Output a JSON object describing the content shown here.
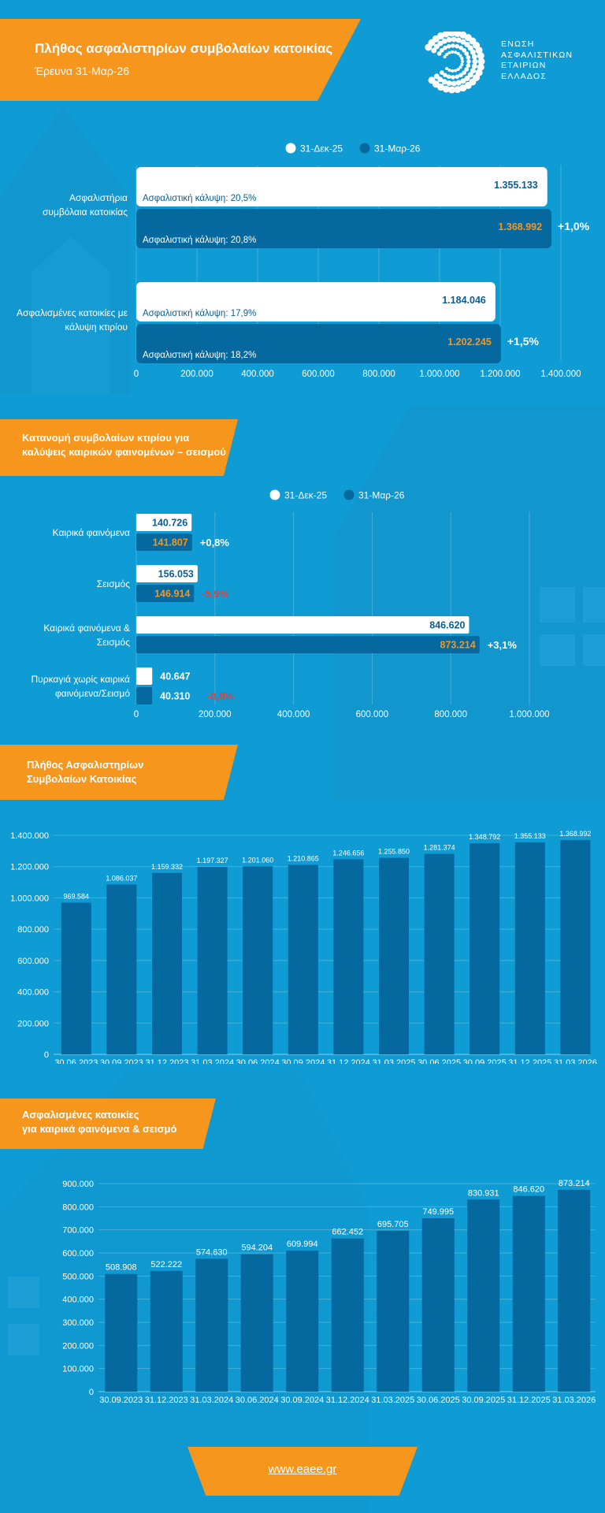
{
  "header": {
    "title": "Πλήθος ασφαλιστηρίων συμβολαίων κατοικίας",
    "subtitle": "Έρευνα 31-Μαρ-26"
  },
  "logo": {
    "lines": [
      "ΕΝΩΣΗ",
      "ΑΣΦΑΛΙΣΤΙΚΩΝ",
      "ΕΤΑΙΡΙΩΝ",
      "ΕΛΛΑΔΟΣ"
    ]
  },
  "colors": {
    "background": "#0f9bd4",
    "accent": "#f7961d",
    "series_prev": "#ffffff",
    "series_curr": "#05689f",
    "negative": "#e2403a",
    "value_highlight": "#f7961d",
    "value_dark": "#0b5e93"
  },
  "section_titles": {
    "s2": [
      "Κατανομή συμβολαίων κτιρίου για",
      "καλύψεις καιρικών φαινομένων – σεισμού"
    ],
    "s3": [
      "Πλήθος Ασφαλιστηρίων",
      "Συμβολαίων Κατοικίας"
    ],
    "s4": [
      "Ασφαλισμένες κατοικίες",
      "για καιρικά φαινόμενα & σεισμό"
    ]
  },
  "footer": {
    "link": "www.eaee.gr"
  },
  "chart_data": [
    {
      "type": "bar",
      "orientation": "horizontal",
      "legend": [
        "31-Δεκ-25",
        "31-Μαρ-26"
      ],
      "legend_position": "top",
      "categories": [
        [
          "Ασφαλιστήρια",
          "συμβόλαια κατοικίας"
        ],
        [
          "Ασφαλισμένες κατοικίες με",
          "κάλυψη κτιρίου"
        ]
      ],
      "series": [
        {
          "name": "31-Δεκ-25",
          "values": [
            1355133,
            1184046
          ],
          "value_labels": [
            "1.355.133",
            "1.184.046"
          ],
          "notes": [
            "Ασφαλιστική κάλυψη: 20,5%",
            "Ασφαλιστική κάλυψη: 17,9%"
          ]
        },
        {
          "name": "31-Μαρ-26",
          "values": [
            1368992,
            1202245
          ],
          "value_labels": [
            "1.368.992",
            "1.202.245"
          ],
          "notes": [
            "Ασφαλιστική κάλυψη: 20,8%",
            "Ασφαλιστική κάλυψη: 18,2%"
          ]
        }
      ],
      "changes": [
        "+1,0%",
        "+1,5%"
      ],
      "xlim": [
        0,
        1400000
      ],
      "ticks": [
        "0",
        "200.000",
        "400.000",
        "600.000",
        "800.000",
        "1.000.000",
        "1.200.000",
        "1.400.000"
      ],
      "grid": true
    },
    {
      "type": "bar",
      "orientation": "horizontal",
      "legend": [
        "31-Δεκ-25",
        "31-Μαρ-26"
      ],
      "legend_position": "top",
      "categories": [
        [
          "Καιρικά φαινόμενα"
        ],
        [
          "Σεισμός"
        ],
        [
          "Καιρικά φαινόμενα &",
          "Σεισμός"
        ],
        [
          "Πυρκαγιά χωρίς καιρικά",
          "φαινόμενα/Σεισμό"
        ]
      ],
      "series": [
        {
          "name": "31-Δεκ-25",
          "values": [
            140726,
            156053,
            846620,
            40647
          ],
          "value_labels": [
            "140.726",
            "156.053",
            "846.620",
            "40.647"
          ]
        },
        {
          "name": "31-Μαρ-26",
          "values": [
            141807,
            146914,
            873214,
            40310
          ],
          "value_labels": [
            "141.807",
            "146.914",
            "873.214",
            "40.310"
          ]
        }
      ],
      "changes": [
        "+0,8%",
        "-5,9%",
        "+3,1%",
        "-0,8%"
      ],
      "change_negative": [
        false,
        true,
        false,
        true
      ],
      "xlim": [
        0,
        1000000
      ],
      "ticks": [
        "0",
        "200.000",
        "400.000",
        "600.000",
        "800.000",
        "1.000.000"
      ],
      "grid": true
    },
    {
      "type": "bar",
      "orientation": "vertical",
      "categories": [
        "30.06.2023",
        "30.09.2023",
        "31.12.2023",
        "31.03.2024",
        "30.06.2024",
        "30.09.2024",
        "31.12.2024",
        "31.03.2025",
        "30.06.2025",
        "30.09.2025",
        "31.12.2025",
        "31.03.2026"
      ],
      "values": [
        969584,
        1086037,
        1159332,
        1197327,
        1201060,
        1210865,
        1246656,
        1255850,
        1281374,
        1348792,
        1355133,
        1368992
      ],
      "value_labels": [
        "969.584",
        "1.086.037",
        "1.159.332",
        "1.197.327",
        "1.201.060",
        "1.210.865",
        "1.246.656",
        "1.255.850",
        "1.281.374",
        "1.348.792",
        "1.355.133",
        "1.368.992"
      ],
      "ylim": [
        0,
        1400000
      ],
      "ticks": [
        "0",
        "200.000",
        "400.000",
        "600.000",
        "800.000",
        "1.000.000",
        "1.200.000",
        "1.400.000"
      ],
      "grid": true
    },
    {
      "type": "bar",
      "orientation": "vertical",
      "categories": [
        "30.09.2023",
        "31.12.2023",
        "31.03.2024",
        "30.06.2024",
        "30.09.2024",
        "31.12.2024",
        "31.03.2025",
        "30.06.2025",
        "30.09.2025",
        "31.12.2025",
        "31.03.2026"
      ],
      "values": [
        508908,
        522222,
        574630,
        594204,
        609994,
        662452,
        695705,
        749995,
        830931,
        846620,
        873214
      ],
      "value_labels": [
        "508.908",
        "522.222",
        "574.630",
        "594.204",
        "609.994",
        "662.452",
        "695.705",
        "749.995",
        "830.931",
        "846.620",
        "873.214"
      ],
      "ylim": [
        0,
        900000
      ],
      "ticks": [
        "0",
        "100.000",
        "200.000",
        "300.000",
        "400.000",
        "500.000",
        "600.000",
        "700.000",
        "800.000",
        "900.000"
      ],
      "grid": true
    }
  ]
}
